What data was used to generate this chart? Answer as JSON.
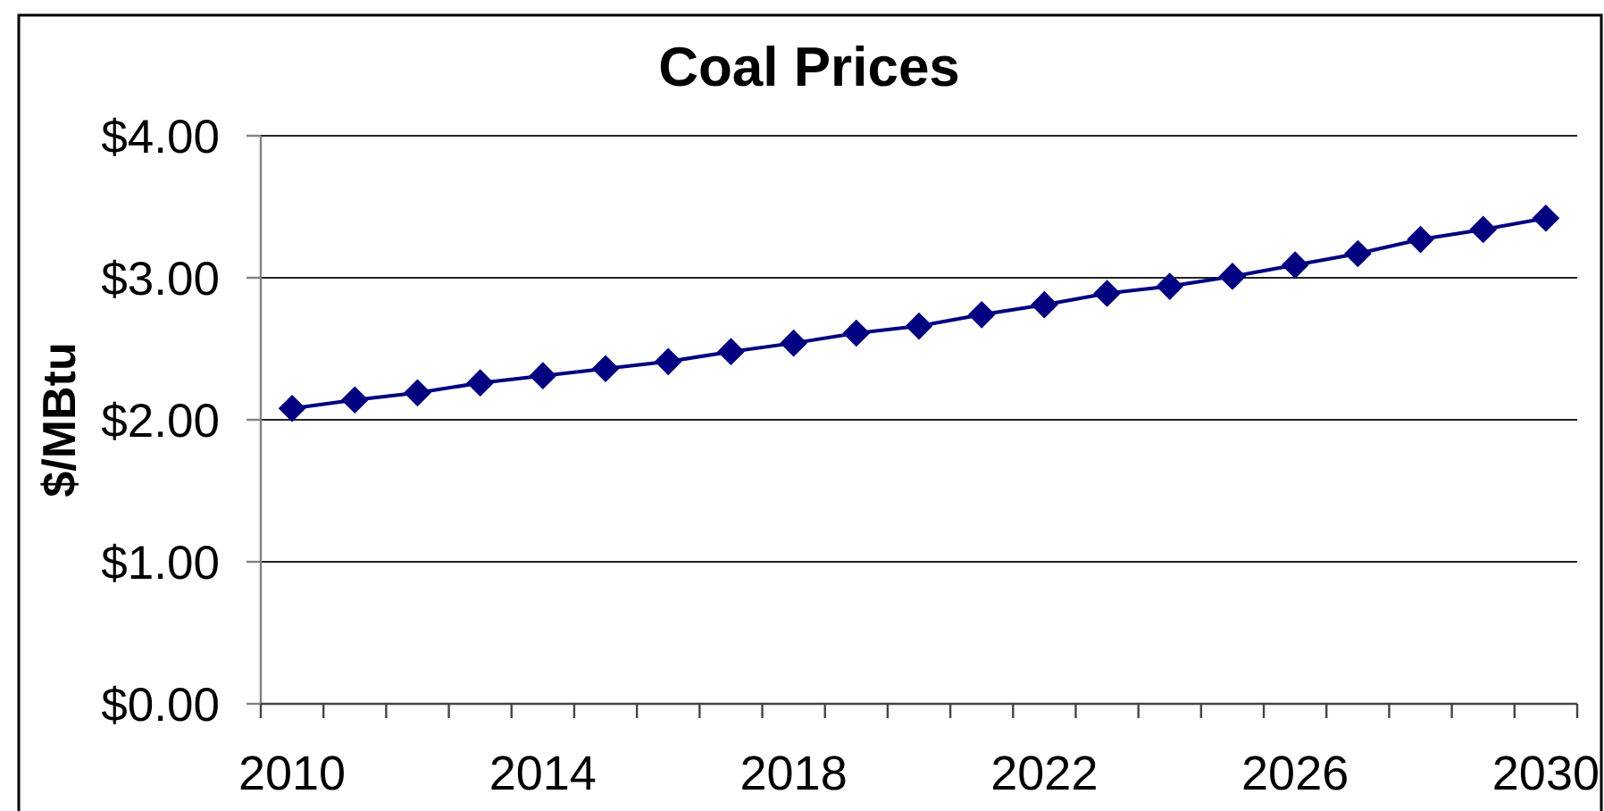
{
  "chart_data": {
    "type": "line",
    "title": "Coal Prices",
    "ylabel": "$/MBtu",
    "categories": [
      "2010",
      null,
      null,
      null,
      "2014",
      null,
      null,
      null,
      "2018",
      null,
      null,
      null,
      "2022",
      null,
      null,
      null,
      "2026",
      null,
      null,
      null,
      "2030"
    ],
    "series": [
      {
        "color": "#000080",
        "values": [
          2.08,
          2.14,
          2.19,
          2.26,
          2.31,
          2.36,
          2.41,
          2.48,
          2.54,
          2.61,
          2.66,
          2.74,
          2.81,
          2.89,
          2.94,
          3.01,
          3.09,
          3.17,
          3.27,
          3.34,
          3.42
        ]
      }
    ],
    "ylim": [
      0,
      4
    ],
    "yticks": [
      {
        "value": 0,
        "label": "$0.00"
      },
      {
        "value": 1,
        "label": "$1.00"
      },
      {
        "value": 2,
        "label": "$2.00"
      },
      {
        "value": 3,
        "label": "$3.00"
      },
      {
        "value": 4,
        "label": "$4.00"
      }
    ],
    "grid": "y",
    "marker": "diamond"
  }
}
